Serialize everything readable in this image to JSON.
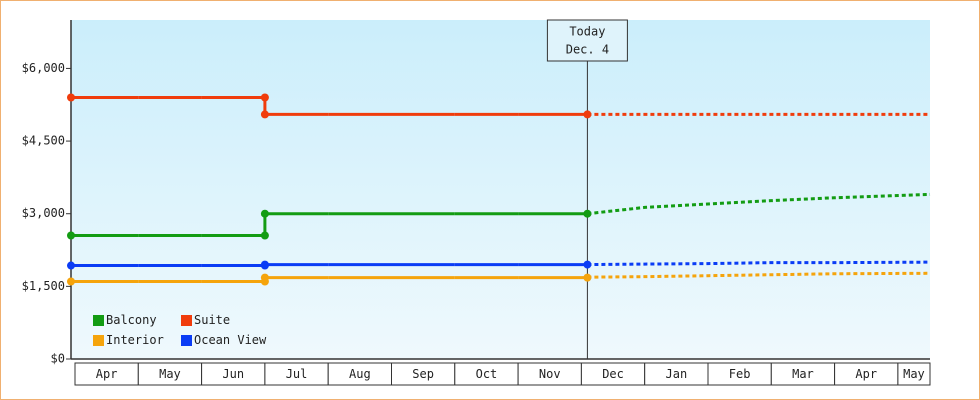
{
  "chart_data": {
    "type": "line",
    "categories": [
      "Apr",
      "May",
      "Jun",
      "Jul",
      "Aug",
      "Sep",
      "Oct",
      "Nov",
      "Dec",
      "Jan",
      "Feb",
      "Mar",
      "Apr",
      "May"
    ],
    "annotations": [
      "Today",
      "Dec. 4"
    ],
    "ylim": [
      0,
      7000
    ],
    "yticks": [
      {
        "value": 0,
        "label": "$0"
      },
      {
        "value": 1500,
        "label": "$1,500"
      },
      {
        "value": 3000,
        "label": "$3,000"
      },
      {
        "value": 4500,
        "label": "$4,500"
      },
      {
        "value": 6000,
        "label": "$6,000"
      }
    ],
    "series": [
      {
        "name": "Balcony",
        "color": "#139c13",
        "values": [
          2550,
          2550,
          2550,
          3000,
          3000,
          3000,
          3000,
          3000,
          null,
          null,
          null,
          null,
          null,
          null
        ],
        "forecast": [
          null,
          null,
          null,
          null,
          null,
          null,
          null,
          null,
          3000,
          3130,
          3200,
          3270,
          3330,
          3400
        ]
      },
      {
        "name": "Suite",
        "color": "#f03c0c",
        "values": [
          5400,
          5400,
          5400,
          5050,
          5050,
          5050,
          5050,
          5050,
          null,
          null,
          null,
          null,
          null,
          null
        ],
        "forecast": [
          null,
          null,
          null,
          null,
          null,
          null,
          null,
          null,
          5050,
          5050,
          5050,
          5050,
          5050,
          5050
        ]
      },
      {
        "name": "Interior",
        "color": "#f5a40c",
        "values": [
          1600,
          1600,
          1600,
          1680,
          1680,
          1680,
          1680,
          1680,
          null,
          null,
          null,
          null,
          null,
          null
        ],
        "forecast": [
          null,
          null,
          null,
          null,
          null,
          null,
          null,
          null,
          1690,
          1700,
          1720,
          1740,
          1760,
          1770
        ]
      },
      {
        "name": "Ocean View",
        "color": "#0a3cf5",
        "values": [
          1930,
          1930,
          1930,
          1950,
          1950,
          1950,
          1950,
          1950,
          null,
          null,
          null,
          null,
          null,
          null
        ],
        "forecast": [
          null,
          null,
          null,
          null,
          null,
          null,
          null,
          null,
          1950,
          1960,
          1970,
          1990,
          1990,
          2000
        ]
      }
    ]
  }
}
